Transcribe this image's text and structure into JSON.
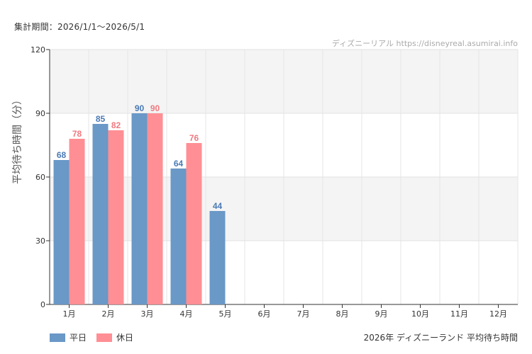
{
  "period_text": "集計期間：2026/1/1～2026/5/1",
  "watermark": "ディズニーリアル https://disneyreal.asumirai.info",
  "caption": "2026年 ディズニーランド 平均待ち時間",
  "colors": {
    "weekday": "#6a98c7",
    "holiday": "#ff8f94",
    "weekday_label": "#4a7ab5",
    "holiday_label": "#f07a80"
  },
  "chart_data": {
    "type": "bar",
    "ylabel": "平均待ち時間（分）",
    "ylim": [
      0,
      120
    ],
    "yticks": [
      0,
      30,
      60,
      90,
      120
    ],
    "categories": [
      "1月",
      "2月",
      "3月",
      "4月",
      "5月",
      "6月",
      "7月",
      "8月",
      "9月",
      "10月",
      "11月",
      "12月"
    ],
    "series": [
      {
        "name": "平日",
        "values": [
          68,
          85,
          90,
          64,
          44,
          null,
          null,
          null,
          null,
          null,
          null,
          null
        ]
      },
      {
        "name": "休日",
        "values": [
          78,
          82,
          90,
          76,
          null,
          null,
          null,
          null,
          null,
          null,
          null,
          null
        ]
      }
    ],
    "legend": "bottom-left",
    "grid": true
  }
}
